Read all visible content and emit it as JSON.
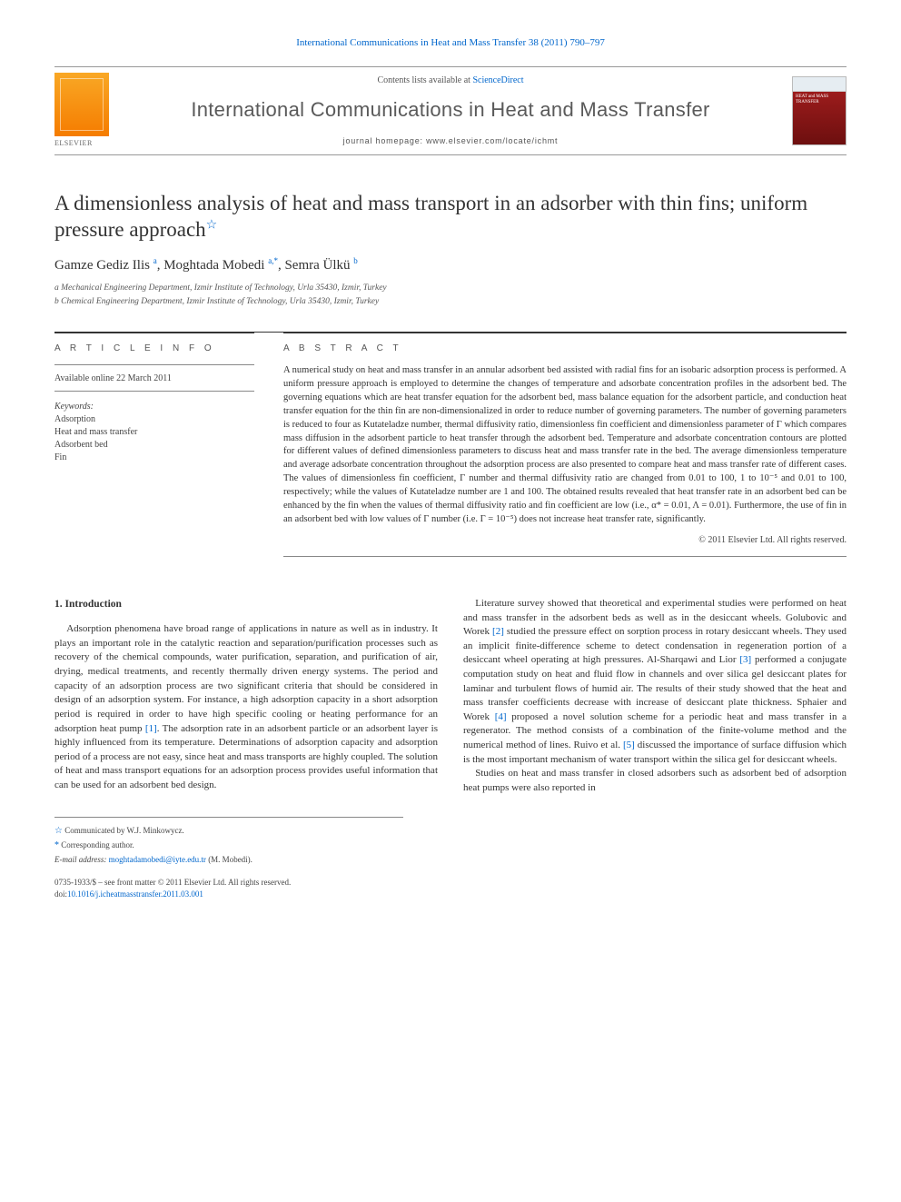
{
  "top_link": {
    "prefix": "International Communications in Heat and Mass Transfer 38 (2011) 790–797"
  },
  "masthead": {
    "contents_prefix": "Contents lists available at ",
    "contents_link": "ScienceDirect",
    "journal": "International Communications in Heat and Mass Transfer",
    "homepage_prefix": "journal homepage: ",
    "homepage": "www.elsevier.com/locate/ichmt",
    "publisher_logo_label": "ELSEVIER",
    "cover_text": "HEAT and MASS TRANSFER"
  },
  "article": {
    "title": "A dimensionless analysis of heat and mass transport in an adsorber with thin fins; uniform pressure approach",
    "star_note_marker": "☆",
    "authors_html": {
      "a1_name": "Gamze Gediz Ilis",
      "a1_sup": "a",
      "a2_name": "Moghtada Mobedi",
      "a2_sup": "a,",
      "a2_corr": "*",
      "a3_name": "Semra Ülkü",
      "a3_sup": "b"
    },
    "affiliations": {
      "a": "a Mechanical Engineering Department, Izmir Institute of Technology, Urla 35430, Izmir, Turkey",
      "b": "b Chemical Engineering Department, Izmir Institute of Technology, Urla 35430, Izmir, Turkey"
    }
  },
  "meta": {
    "section_head": "A R T I C L E   I N F O",
    "available": "Available online 22 March 2011",
    "keywords_head": "Keywords:",
    "keywords": [
      "Adsorption",
      "Heat and mass transfer",
      "Adsorbent bed",
      "Fin"
    ]
  },
  "abstract": {
    "section_head": "A B S T R A C T",
    "text": "A numerical study on heat and mass transfer in an annular adsorbent bed assisted with radial fins for an isobaric adsorption process is performed. A uniform pressure approach is employed to determine the changes of temperature and adsorbate concentration profiles in the adsorbent bed. The governing equations which are heat transfer equation for the adsorbent bed, mass balance equation for the adsorbent particle, and conduction heat transfer equation for the thin fin are non-dimensionalized in order to reduce number of governing parameters. The number of governing parameters is reduced to four as Kutateladze number, thermal diffusivity ratio, dimensionless fin coefficient and dimensionless parameter of Γ which compares mass diffusion in the adsorbent particle to heat transfer through the adsorbent bed. Temperature and adsorbate concentration contours are plotted for different values of defined dimensionless parameters to discuss heat and mass transfer rate in the bed. The average dimensionless temperature and average adsorbate concentration throughout the adsorption process are also presented to compare heat and mass transfer rate of different cases. The values of dimensionless fin coefficient, Γ number and thermal diffusivity ratio are changed from 0.01 to 100, 1 to 10⁻⁵ and 0.01 to 100, respectively; while the values of Kutateladze number are 1 and 100. The obtained results revealed that heat transfer rate in an adsorbent bed can be enhanced by the fin when the values of thermal diffusivity ratio and fin coefficient are low (i.e., α* = 0.01, Λ = 0.01). Furthermore, the use of fin in an adsorbent bed with low values of Γ number (i.e. Γ = 10⁻⁵) does not increase heat transfer rate, significantly.",
    "copyright": "© 2011 Elsevier Ltd. All rights reserved."
  },
  "body": {
    "h_intro": "1. Introduction",
    "p1": "Adsorption phenomena have broad range of applications in nature as well as in industry. It plays an important role in the catalytic reaction and separation/purification processes such as recovery of the chemical compounds, water purification, separation, and purification of air, drying, medical treatments, and recently thermally driven energy systems. The period and capacity of an adsorption process are two significant criteria that should be considered in design of an adsorption system. For instance, a high adsorption capacity in a short adsorption period is required in order to have high specific cooling or heating performance for an adsorption heat pump ",
    "c1": "[1]",
    "p1b": ". The adsorption rate in an adsorbent particle or an adsorbent layer is highly influenced from its temperature. Determinations of adsorption capacity and adsorption period of a process are not easy, since heat and mass transports are highly coupled. The solution of heat and mass transport",
    "p2a": "equations for an adsorption process provides useful information that can be used for an adsorbent bed design.",
    "p3": "Literature survey showed that theoretical and experimental studies were performed on heat and mass transfer in the adsorbent beds as well as in the desiccant wheels. Golubovic and Worek ",
    "c2": "[2]",
    "p3b": " studied the pressure effect on sorption process in rotary desiccant wheels. They used an implicit finite-difference scheme to detect condensation in regeneration portion of a desiccant wheel operating at high pressures. Al-Sharqawi and Lior ",
    "c3": "[3]",
    "p3c": " performed a conjugate computation study on heat and fluid flow in channels and over silica gel desiccant plates for laminar and turbulent flows of humid air. The results of their study showed that the heat and mass transfer coefficients decrease with increase of desiccant plate thickness. Sphaier and Worek ",
    "c4": "[4]",
    "p3d": " proposed a novel solution scheme for a periodic heat and mass transfer in a regenerator. The method consists of a combination of the finite-volume method and the numerical method of lines. Ruivo et al. ",
    "c5": "[5]",
    "p3e": " discussed the importance of surface diffusion which is the most important mechanism of water transport within the silica gel for desiccant wheels.",
    "p4": "Studies on heat and mass transfer in closed adsorbers such as adsorbent bed of adsorption heat pumps were also reported in"
  },
  "footer": {
    "note_star": "☆",
    "note1": " Communicated by W.J. Minkowycz.",
    "note_ast": "*",
    "note2": " Corresponding author.",
    "email_label": "E-mail address: ",
    "email": "moghtadamobedi@iyte.edu.tr",
    "email_tail": " (M. Mobedi).",
    "issn_line": "0735-1933/$ – see front matter © 2011 Elsevier Ltd. All rights reserved.",
    "doi_prefix": "doi:",
    "doi": "10.1016/j.icheatmasstransfer.2011.03.001"
  },
  "colors": {
    "link": "#0066cc",
    "text": "#333333",
    "rule": "#888888",
    "elsevier_orange": "#f57c00",
    "cover_red": "#8a1414"
  }
}
